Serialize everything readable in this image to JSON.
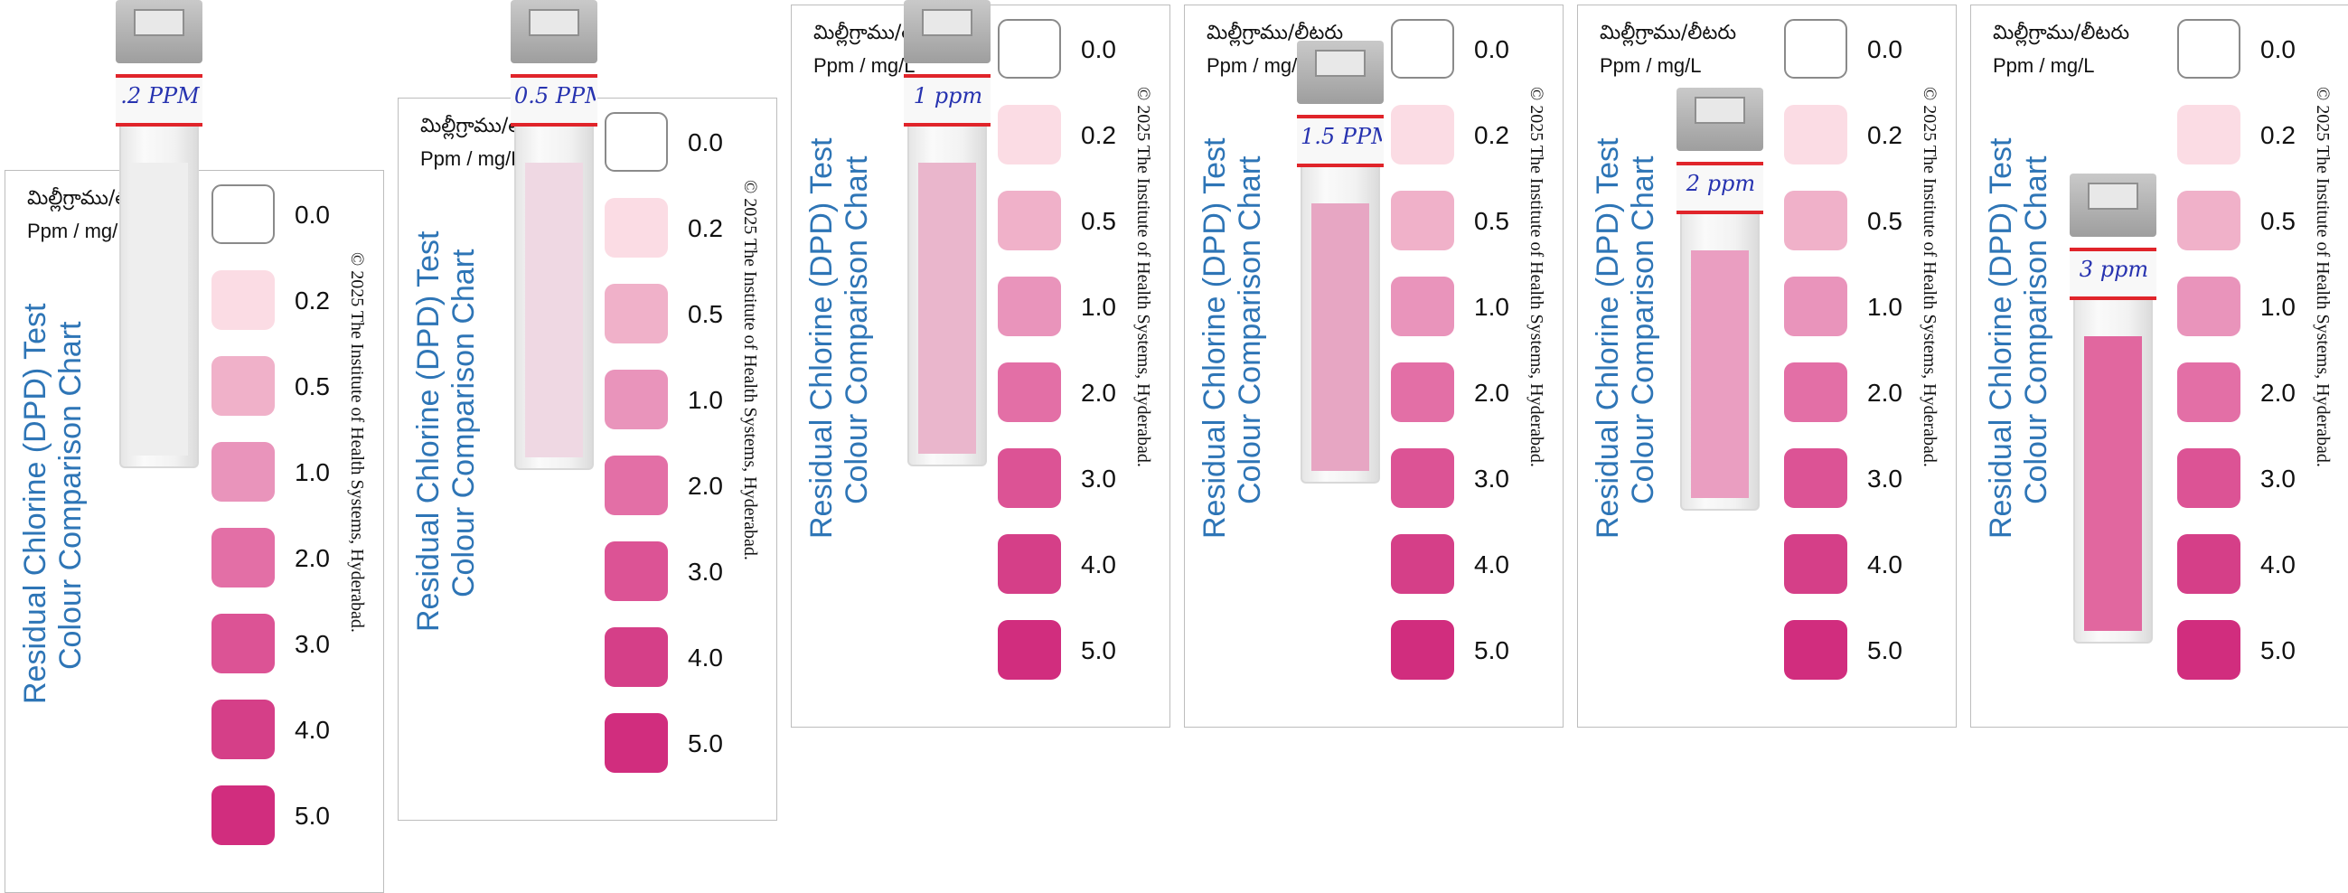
{
  "unit_telugu": "మిల్లీగ్రాము/లీటరు",
  "unit_english": "Ppm / mg/L",
  "title_line1": "Residual Chlorine (DPD) Test",
  "title_line2": "Colour Comparison Chart",
  "copyright": "© 2025 The Institute of Health Systems, Hyderabad.",
  "swatches": [
    {
      "value": "0.0",
      "color": "#ffffff"
    },
    {
      "value": "0.2",
      "color": "#fbdce4"
    },
    {
      "value": "0.5",
      "color": "#f0b1c9"
    },
    {
      "value": "1.0",
      "color": "#e994bb"
    },
    {
      "value": "2.0",
      "color": "#e36fa6"
    },
    {
      "value": "3.0",
      "color": "#dc5395"
    },
    {
      "value": "4.0",
      "color": "#d53f88"
    },
    {
      "value": "5.0",
      "color": "#d12d7e"
    }
  ],
  "samples": [
    {
      "label": ".2 PPM",
      "liquid_color": "#eeeeee"
    },
    {
      "label": "0.5 PPM",
      "liquid_color": "#efd8e3"
    },
    {
      "label": "1 ppm",
      "liquid_color": "#eab6cc"
    },
    {
      "label": "1.5 PPM",
      "liquid_color": "#e7a6c3"
    },
    {
      "label": "2 ppm",
      "liquid_color": "#ea9ec1"
    },
    {
      "label": "3 ppm",
      "liquid_color": "#e1679f"
    }
  ]
}
